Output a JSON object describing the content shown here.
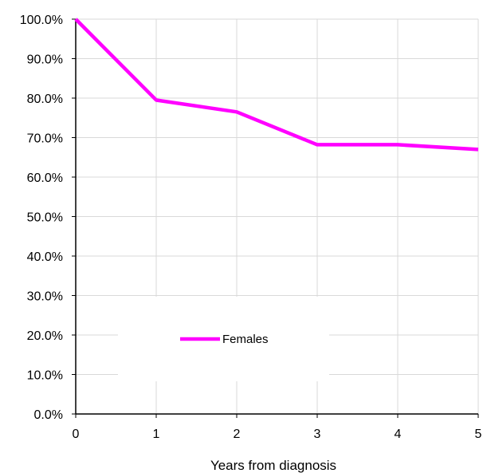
{
  "chart_data": {
    "type": "line",
    "title": "",
    "xlabel": "Years from diagnosis",
    "ylabel": "",
    "x": [
      0,
      1,
      2,
      3,
      4,
      5
    ],
    "xlim": [
      0,
      5
    ],
    "ylim": [
      0,
      100
    ],
    "y_ticks": [
      "0.0%",
      "10.0%",
      "20.0%",
      "30.0%",
      "40.0%",
      "50.0%",
      "60.0%",
      "70.0%",
      "80.0%",
      "90.0%",
      "100.0%"
    ],
    "x_ticks": [
      "0",
      "1",
      "2",
      "3",
      "4",
      "5"
    ],
    "grid": true,
    "legend_position": "lower-center",
    "series": [
      {
        "name": "Females",
        "color": "#ff00ff",
        "values": [
          100.0,
          79.5,
          76.5,
          68.2,
          68.2,
          67.0
        ]
      }
    ]
  }
}
